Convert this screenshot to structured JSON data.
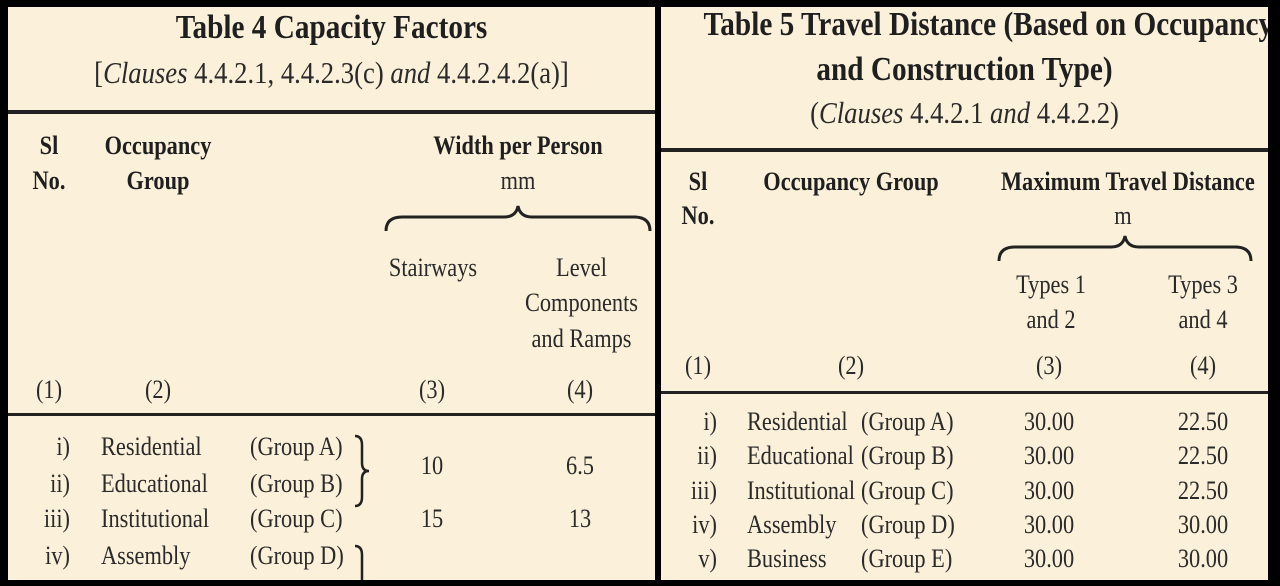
{
  "table4": {
    "title": "Table 4 Capacity Factors",
    "clauses": {
      "open": "[",
      "label": "Clauses",
      "first": " 4.4.2.1, 4.4.2.3(c) ",
      "and": "and",
      "last": " 4.4.2.4.2(a)]"
    },
    "headers": {
      "sl_line1": "Sl",
      "sl_line2": "No.",
      "occ_line1": "Occupancy",
      "occ_line2": "Group",
      "width_title": "Width per Person",
      "width_unit": "mm",
      "stairways": "Stairways",
      "level_line1": "Level",
      "level_line2": "Components",
      "level_line3": "and Ramps"
    },
    "col_numbers": [
      "(1)",
      "(2)",
      "(3)",
      "(4)"
    ],
    "rows": [
      {
        "sl": "i)",
        "name": "Residential",
        "group": "(Group A)"
      },
      {
        "sl": "ii)",
        "name": "Educational",
        "group": "(Group B)"
      },
      {
        "sl": "iii)",
        "name": "Institutional",
        "group": "(Group C)"
      },
      {
        "sl": "iv)",
        "name": "Assembly",
        "group": "(Group D)"
      }
    ],
    "values": {
      "ab_stairways": "10",
      "ab_level": "6.5",
      "c_stairways": "15",
      "c_level": "13"
    }
  },
  "table5": {
    "title_line1": "Table 5 Travel Distance (Based on Occupancy",
    "title_line2": "and Construction Type)",
    "clauses": {
      "open": "(",
      "label": "Clauses",
      "first": " 4.4.2.1 ",
      "and": "and",
      "last": " 4.4.2.2)"
    },
    "headers": {
      "sl_line1": "Sl",
      "sl_line2": "No.",
      "occ": "Occupancy Group",
      "max_title": "Maximum Travel Distance",
      "max_unit": "m",
      "t12_line1": "Types 1",
      "t12_line2": "and 2",
      "t34_line1": "Types 3",
      "t34_line2": "and 4"
    },
    "col_numbers": [
      "(1)",
      "(2)",
      "(3)",
      "(4)"
    ],
    "rows": [
      {
        "sl": "i)",
        "name": "Residential",
        "group": "(Group A)",
        "t12": "30.00",
        "t34": "22.50"
      },
      {
        "sl": "ii)",
        "name": "Educational",
        "group": "(Group B)",
        "t12": "30.00",
        "t34": "22.50"
      },
      {
        "sl": "iii)",
        "name": "Institutional",
        "group": "(Group C)",
        "t12": "30.00",
        "t34": "22.50"
      },
      {
        "sl": "iv)",
        "name": "Assembly",
        "group": "(Group D)",
        "t12": "30.00",
        "t34": "30.00"
      },
      {
        "sl": "v)",
        "name": "Business",
        "group": "(Group E)",
        "t12": "30.00",
        "t34": "30.00"
      }
    ]
  }
}
